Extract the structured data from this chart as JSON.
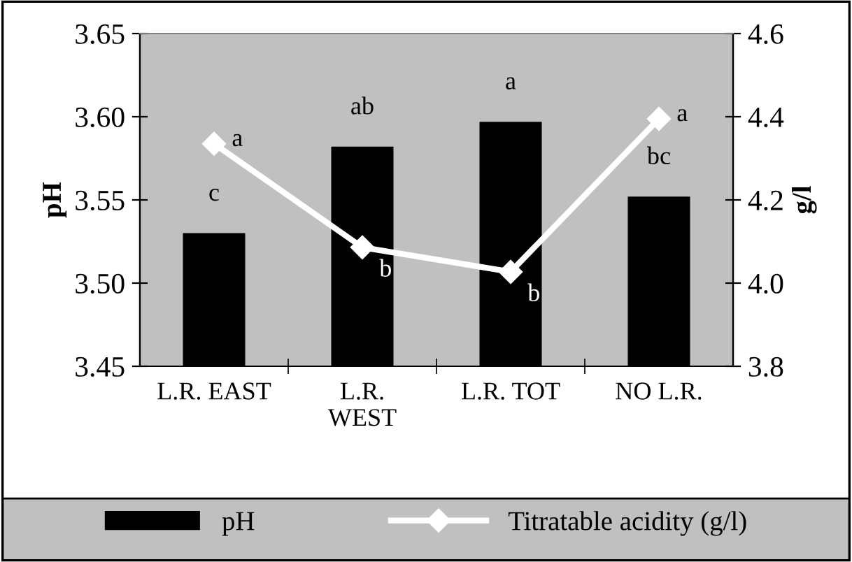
{
  "chart_data": {
    "type": "bar",
    "categories": [
      "L.R. EAST",
      "L.R.\nWEST",
      "L.R. TOT",
      "NO L.R."
    ],
    "ylabel": "pH",
    "y2label": "g/l",
    "ylim": [
      3.45,
      3.65
    ],
    "yticks": [
      {
        "value": 3.45,
        "label": "3.45"
      },
      {
        "value": 3.5,
        "label": "3.50"
      },
      {
        "value": 3.55,
        "label": "3.55"
      },
      {
        "value": 3.6,
        "label": "3.60"
      },
      {
        "value": 3.65,
        "label": "3.65"
      }
    ],
    "y2lim": [
      3.8,
      4.6
    ],
    "y2ticks": [
      {
        "value": 3.8,
        "label": "3.8"
      },
      {
        "value": 4.0,
        "label": "4.0"
      },
      {
        "value": 4.2,
        "label": "4.2"
      },
      {
        "value": 4.4,
        "label": "4.4"
      },
      {
        "value": 4.6,
        "label": "4.6"
      }
    ],
    "series": [
      {
        "name": "pH",
        "color": "#000000",
        "values": [
          3.53,
          3.582,
          3.597,
          3.552
        ],
        "value_labels": [
          "c",
          "ab",
          "a",
          "bc"
        ]
      },
      {
        "name": "Titratable acidity (g/l)",
        "type": "line",
        "axis": "y2",
        "color": "#ffffff",
        "values": [
          4.335,
          4.086,
          4.027,
          4.395
        ],
        "value_labels": [
          "a",
          "b",
          "b",
          "a"
        ]
      }
    ],
    "marker": "diamond",
    "line_style": "solid",
    "grid": false,
    "legend": "bottom"
  }
}
